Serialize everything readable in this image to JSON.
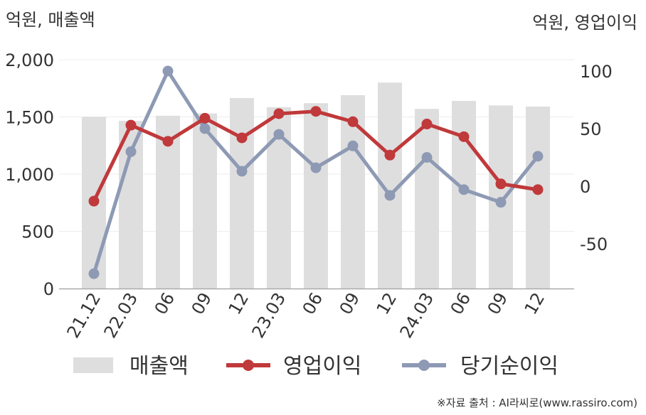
{
  "chart_data": {
    "type": "bar",
    "title": "",
    "left_axis": {
      "unit_label": "억원, 매출액",
      "ylim": [
        0,
        2000
      ],
      "ticks": [
        "0",
        "500",
        "1,000",
        "1,500",
        "2,000"
      ],
      "tick_values": [
        0,
        500,
        1000,
        1500,
        2000
      ]
    },
    "right_axis": {
      "unit_label": "억원, 영업이익",
      "ylim": [
        -90,
        110
      ],
      "ticks": [
        "-50",
        "0",
        "50",
        "100"
      ],
      "tick_values": [
        -50,
        0,
        50,
        100
      ]
    },
    "categories": [
      "21.12",
      "22.03",
      "06",
      "09",
      "12",
      "23.03",
      "06",
      "09",
      "12",
      "24.03",
      "06",
      "09",
      "12"
    ],
    "grid": true,
    "legend_position": "bottom",
    "series": [
      {
        "name": "매출액",
        "type": "bar",
        "axis": "left",
        "color": "#dedede",
        "values": [
          1500,
          1465,
          1510,
          1530,
          1665,
          1585,
          1620,
          1690,
          1800,
          1570,
          1640,
          1600,
          1590
        ]
      },
      {
        "name": "영업이익",
        "type": "line",
        "axis": "right",
        "color": "#c0393b",
        "values": [
          -13,
          53,
          39,
          59,
          42,
          63,
          65,
          56,
          27,
          54,
          43,
          2,
          -3
        ]
      },
      {
        "name": "당기순이익",
        "type": "line",
        "axis": "right",
        "color": "#8e9ab4",
        "values": [
          -76,
          30,
          100,
          50,
          13,
          45,
          16,
          35,
          -8,
          25,
          -3,
          -14,
          26
        ]
      }
    ]
  },
  "source_note": "※자료 출처 : AI라씨로(www.rassiro.com)"
}
